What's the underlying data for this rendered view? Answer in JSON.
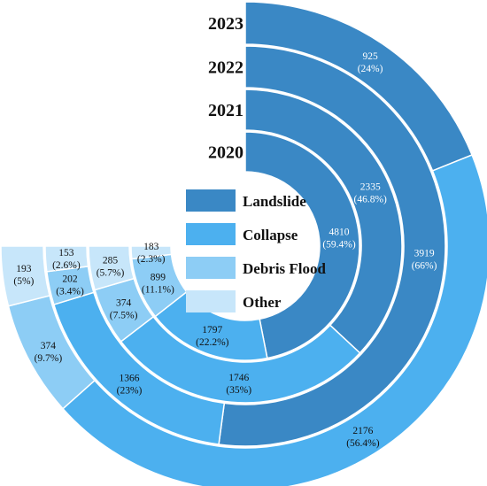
{
  "chart_data": {
    "type": "radial-bar",
    "title": "",
    "categories": [
      "Landslide",
      "Collapse",
      "Debris Flood",
      "Other"
    ],
    "colors": {
      "Landslide": "#3a88c5",
      "Collapse": "#4cb0ef",
      "Debris Flood": "#8dcdf5",
      "Other": "#c7e6fa"
    },
    "years": [
      {
        "year": "2023",
        "segments": [
          {
            "category": "Landslide",
            "value": 925,
            "percent": "24%",
            "label": "925",
            "pct_label": "(24%)"
          },
          {
            "category": "Collapse",
            "value": 2176,
            "percent": "56.4%",
            "label": "2176",
            "pct_label": "(56.4%)"
          },
          {
            "category": "Debris Flood",
            "value": 374,
            "percent": "9.7%",
            "label": "374",
            "pct_label": "(9.7%)"
          },
          {
            "category": "Other",
            "value": 193,
            "percent": "5%",
            "label": "193",
            "pct_label": "(5%)"
          }
        ]
      },
      {
        "year": "2022",
        "segments": [
          {
            "category": "Landslide",
            "value": 3919,
            "percent": "66%",
            "label": "3919",
            "pct_label": "(66%)"
          },
          {
            "category": "Collapse",
            "value": 1366,
            "percent": "23%",
            "label": "1366",
            "pct_label": "(23%)"
          },
          {
            "category": "Debris Flood",
            "value": 202,
            "percent": "3.4%",
            "label": "202",
            "pct_label": "(3.4%)"
          },
          {
            "category": "Other",
            "value": 153,
            "percent": "2.6%",
            "label": "153",
            "pct_label": "(2.6%)"
          }
        ]
      },
      {
        "year": "2021",
        "segments": [
          {
            "category": "Landslide",
            "value": 2335,
            "percent": "46.8%",
            "label": "2335",
            "pct_label": "(46.8%)"
          },
          {
            "category": "Collapse",
            "value": 1746,
            "percent": "35%",
            "label": "1746",
            "pct_label": "(35%)"
          },
          {
            "category": "Debris Flood",
            "value": 374,
            "percent": "7.5%",
            "label": "374",
            "pct_label": "(7.5%)"
          },
          {
            "category": "Other",
            "value": 285,
            "percent": "5.7%",
            "label": "285",
            "pct_label": "(5.7%)"
          }
        ]
      },
      {
        "year": "2020",
        "segments": [
          {
            "category": "Landslide",
            "value": 4810,
            "percent": "59.4%",
            "label": "4810",
            "pct_label": "(59.4%)"
          },
          {
            "category": "Collapse",
            "value": 1797,
            "percent": "22.2%",
            "label": "1797",
            "pct_label": "(22.2%)"
          },
          {
            "category": "Debris Flood",
            "value": 899,
            "percent": "11.1%",
            "label": "899",
            "pct_label": "(11.1%)"
          },
          {
            "category": "Other",
            "value": 183,
            "percent": "2.3%",
            "label": "183",
            "pct_label": "(2.3%)"
          }
        ]
      }
    ],
    "legend": {
      "placement": "center",
      "entries": [
        "Landslide",
        "Collapse",
        "Debris Flood",
        "Other"
      ]
    }
  }
}
